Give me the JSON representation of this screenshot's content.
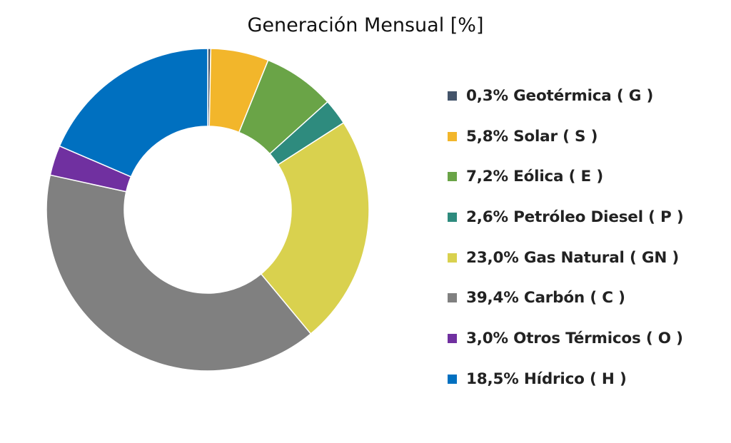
{
  "chart_data": {
    "type": "pie",
    "donut": true,
    "title": "Generación Mensual [%]",
    "legend_position": "right",
    "slices": [
      {
        "name": "Geotérmica ( G )",
        "value": 0.3,
        "label": "0,3%",
        "color": "#44546A"
      },
      {
        "name": "Solar ( S )",
        "value": 5.8,
        "label": "5,8%",
        "color": "#F2B62B"
      },
      {
        "name": "Eólica ( E )",
        "value": 7.2,
        "label": "7,2%",
        "color": "#6AA447"
      },
      {
        "name": "Petróleo Diesel ( P )",
        "value": 2.6,
        "label": "2,6%",
        "color": "#2E8B7E"
      },
      {
        "name": "Gas Natural ( GN )",
        "value": 23.0,
        "label": "23,0%",
        "color": "#D9D14E"
      },
      {
        "name": "Carbón ( C )",
        "value": 39.4,
        "label": "39,4%",
        "color": "#808080"
      },
      {
        "name": "Otros Térmicos ( O )",
        "value": 3.0,
        "label": "3,0%",
        "color": "#7030A0"
      },
      {
        "name": "Hídrico ( H )",
        "value": 18.5,
        "label": "18,5%",
        "color": "#0070C0"
      }
    ]
  }
}
